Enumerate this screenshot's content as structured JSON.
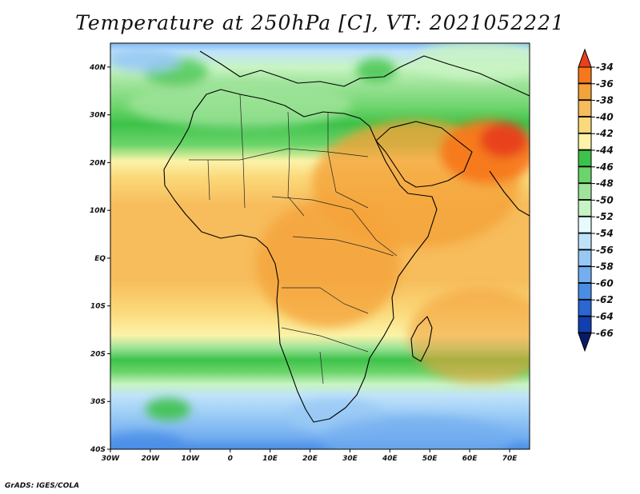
{
  "title": "Temperature at 250hPa [C], VT: 2021052221",
  "credit": "GrADS: IGES/COLA",
  "map": {
    "projection": "latlon",
    "lon_range": [
      -30,
      75
    ],
    "lat_range": [
      -40,
      45
    ],
    "field": "temperature",
    "level_hpa": 250,
    "units": "C",
    "valid_time": "2021052221",
    "x_ticks": [
      -30,
      -20,
      -10,
      0,
      10,
      20,
      30,
      40,
      50,
      60,
      70
    ],
    "x_tick_labels": [
      "30W",
      "20W",
      "10W",
      "0",
      "10E",
      "20E",
      "30E",
      "40E",
      "50E",
      "60E",
      "70E"
    ],
    "y_ticks": [
      -40,
      -30,
      -20,
      -10,
      0,
      10,
      20,
      30,
      40
    ],
    "y_tick_labels": [
      "40S",
      "30S",
      "20S",
      "10S",
      "EQ",
      "10N",
      "20N",
      "30N",
      "40N"
    ],
    "feature_colors": {
      "coast": "#000000",
      "border": "#222222"
    }
  },
  "colorbar": {
    "levels": [
      -34,
      -36,
      -38,
      -40,
      -42,
      -44,
      -46,
      -48,
      -50,
      -52,
      -54,
      -56,
      -58,
      -60,
      -62,
      -64,
      -66
    ],
    "colors": [
      "#e8401c",
      "#f7781c",
      "#f4a23a",
      "#f7bc5b",
      "#fbd97a",
      "#fbf3a8",
      "#3dc24a",
      "#6bd46a",
      "#9fe49a",
      "#c8f4c3",
      "#e6fcfc",
      "#bfe2fb",
      "#98c9f5",
      "#73aef0",
      "#4a8de6",
      "#2a67d3",
      "#123fb0",
      "#0a1a6a",
      "#dcdcf8"
    ],
    "extend": "both"
  }
}
